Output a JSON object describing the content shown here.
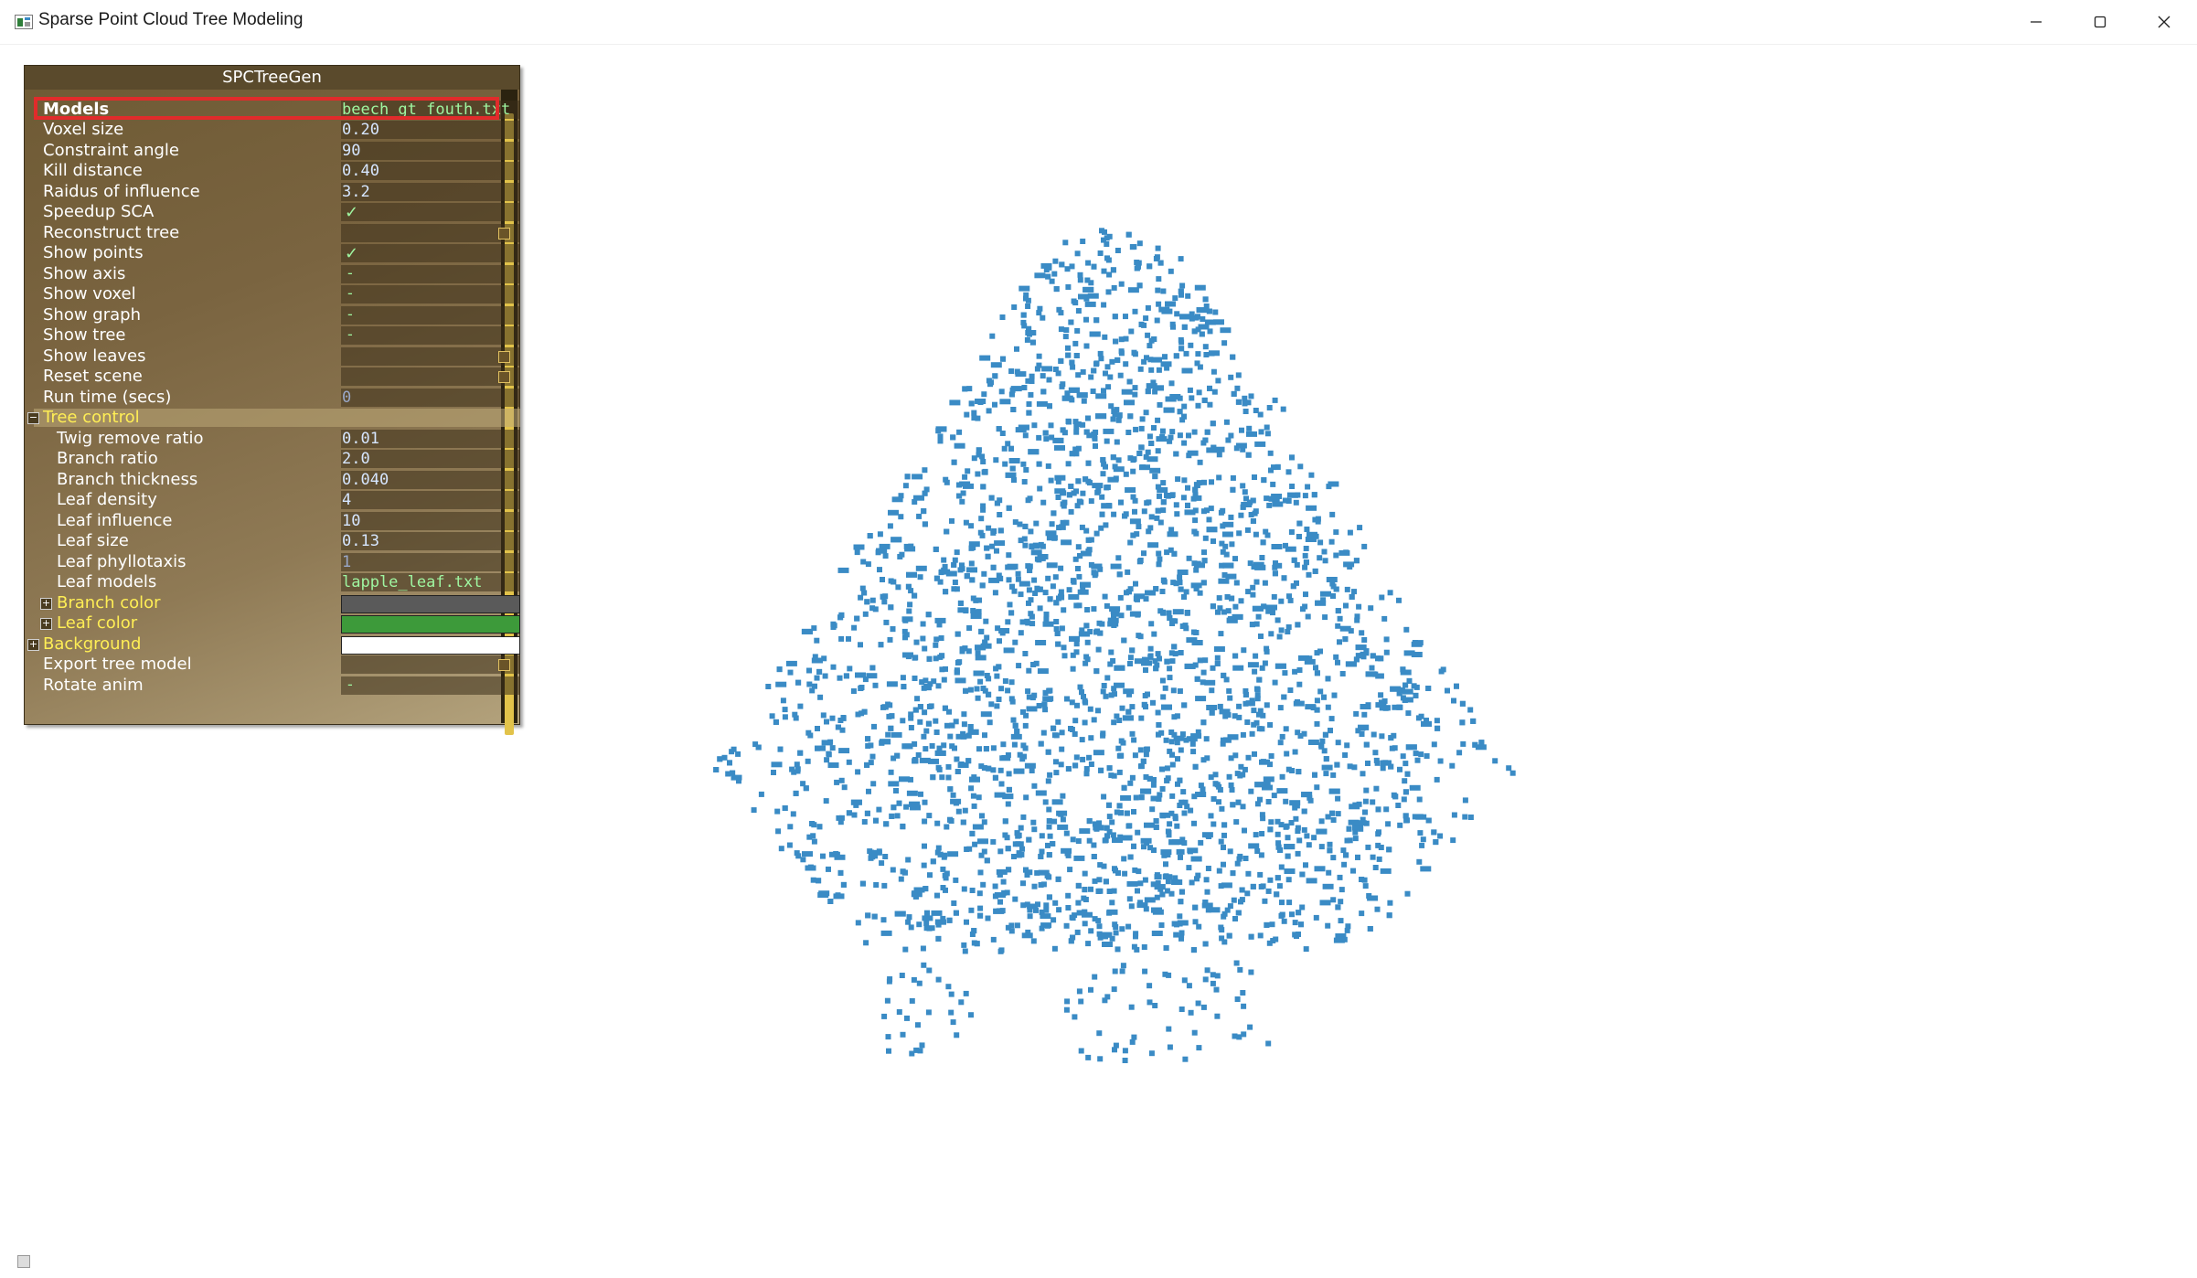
{
  "window": {
    "title": "Sparse Point Cloud Tree Modeling",
    "controls": [
      "minimize",
      "maximize",
      "close"
    ]
  },
  "panel": {
    "title": "SPCTreeGen",
    "rows": {
      "models": {
        "label": "Models",
        "value": "beech_gt_fouth.txt"
      },
      "voxel_size": {
        "label": "Voxel size",
        "value": "0.20"
      },
      "constraint_angle": {
        "label": "Constraint angle",
        "value": "90"
      },
      "kill_distance": {
        "label": "Kill distance",
        "value": "0.40"
      },
      "radius_influence": {
        "label": "Raidus of influence",
        "value": "3.2"
      },
      "speedup_sca": {
        "label": "Speedup SCA",
        "value": "✓"
      },
      "reconstruct_tree": {
        "label": "Reconstruct tree"
      },
      "show_points": {
        "label": "Show points",
        "value": "✓"
      },
      "show_axis": {
        "label": "Show axis",
        "value": "-"
      },
      "show_voxel": {
        "label": "Show voxel",
        "value": "-"
      },
      "show_graph": {
        "label": "Show graph",
        "value": "-"
      },
      "show_tree": {
        "label": "Show tree",
        "value": "-"
      },
      "show_leaves": {
        "label": "Show leaves"
      },
      "reset_scene": {
        "label": "Reset scene"
      },
      "run_time": {
        "label": "Run time (secs)",
        "value": "0"
      },
      "tree_control": {
        "label": "Tree control",
        "expander": "−"
      },
      "twig_remove_ratio": {
        "label": "Twig remove ratio",
        "value": "0.01"
      },
      "branch_ratio": {
        "label": "Branch ratio",
        "value": "2.0"
      },
      "branch_thickness": {
        "label": "Branch thickness",
        "value": "0.040"
      },
      "leaf_density": {
        "label": "Leaf density",
        "value": "4"
      },
      "leaf_influence": {
        "label": "Leaf influence",
        "value": "10"
      },
      "leaf_size": {
        "label": "Leaf size",
        "value": "0.13"
      },
      "leaf_phyllotaxis": {
        "label": "Leaf phyllotaxis",
        "value": "1"
      },
      "leaf_models": {
        "label": "Leaf models",
        "value": "lapple_leaf.txt"
      },
      "branch_color": {
        "label": "Branch color",
        "expander": "+",
        "color": "#5a5a5a"
      },
      "leaf_color": {
        "label": "Leaf color",
        "expander": "+",
        "color": "#3d9a3a"
      },
      "background": {
        "label": "Background",
        "expander": "+",
        "color": "#ffffff"
      },
      "export_tree_model": {
        "label": "Export tree model"
      },
      "rotate_anim": {
        "label": "Rotate anim",
        "value": "-"
      }
    }
  },
  "colors": {
    "point_cloud": "#3a8bc5",
    "highlight": "#e12b2b"
  }
}
